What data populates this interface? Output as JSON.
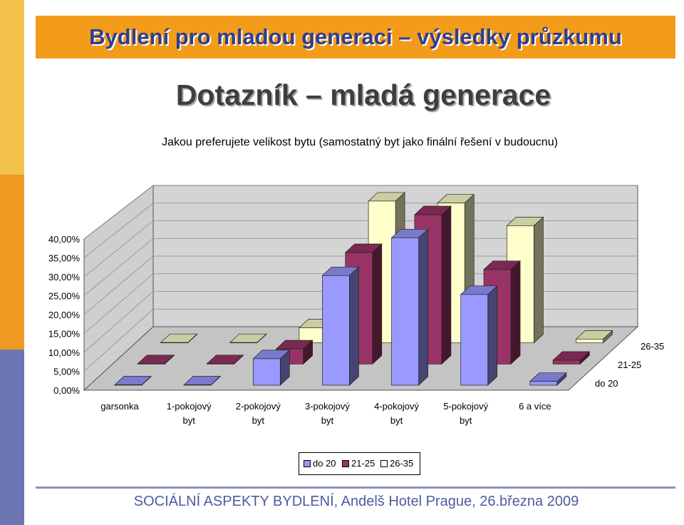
{
  "header": {
    "title": "Bydlení pro mladou generaci – výsledky průzkumu"
  },
  "main": {
    "title": "Dotazník – mladá generace",
    "subtitle": "Jakou preferujete velikost bytu (samostatný byt jako finální řešení v budoucnu)"
  },
  "colors": {
    "strip_top": "#f3c24a",
    "strip_middle": "#ef9a22",
    "strip_bottom": "#6c76b3",
    "header_bar": "#f39b1a",
    "header_text": "#2f3f8f",
    "footer_text": "#4f5aa0"
  },
  "chart_data": {
    "type": "bar",
    "style": "3d-clustered-depth",
    "categories": [
      [
        "garsonka"
      ],
      [
        "1-pokojový",
        "byt"
      ],
      [
        "2-pokojový",
        "byt"
      ],
      [
        "3-pokojový",
        "byt"
      ],
      [
        "4-pokojový",
        "byt"
      ],
      [
        "5-pokojový",
        "byt"
      ],
      [
        "6 a více"
      ]
    ],
    "series": [
      {
        "name": "do 20",
        "color": "#9999ff",
        "values": [
          0.0,
          0.0,
          7.0,
          29.0,
          39.0,
          24.0,
          1.0
        ]
      },
      {
        "name": "21-25",
        "color": "#993366",
        "values": [
          0.0,
          0.0,
          4.0,
          29.5,
          39.5,
          25.0,
          1.0
        ]
      },
      {
        "name": "26-35",
        "color": "#ffffcc",
        "values": [
          0.0,
          0.0,
          4.0,
          37.5,
          37.0,
          31.0,
          1.0
        ]
      }
    ],
    "depth_labels": [
      "do 20",
      "21-25",
      "26-35"
    ],
    "yticks": [
      "0,00%",
      "5,00%",
      "10,00%",
      "15,00%",
      "20,00%",
      "25,00%",
      "30,00%",
      "35,00%",
      "40,00%"
    ],
    "ylim": [
      0,
      40
    ],
    "grid": true,
    "legend": "bottom"
  },
  "footer": {
    "text": "SOCIÁLNÍ ASPEKTY BYDLENÍ, Andelš Hotel Prague, 26.března 2009"
  }
}
